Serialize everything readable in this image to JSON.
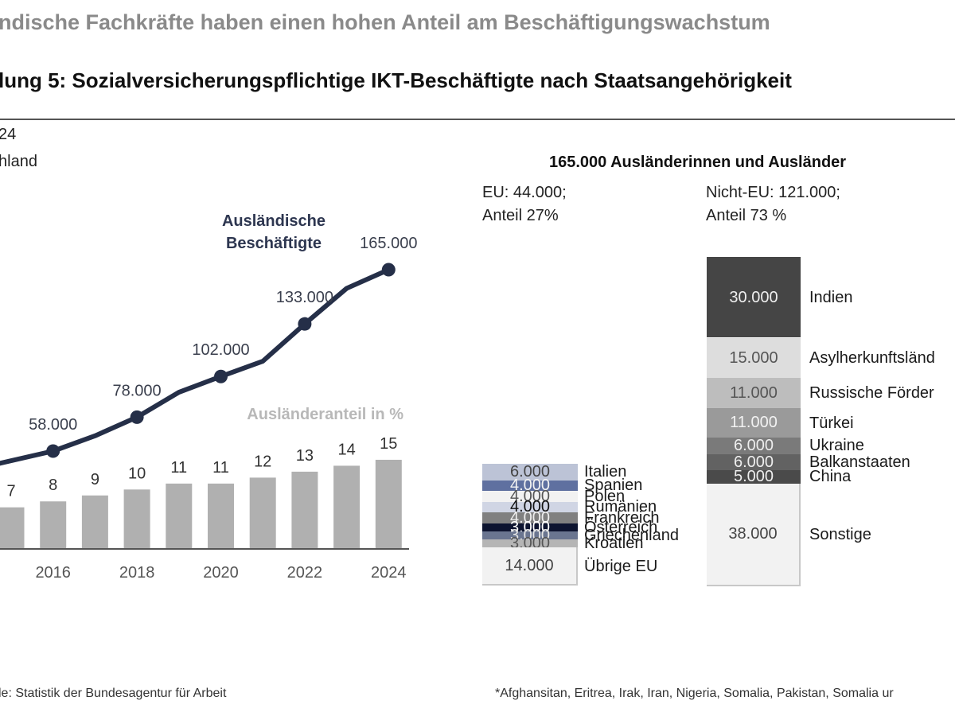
{
  "page": {
    "headline": "ndische Fachkräfte haben einen hohen Anteil am Beschäftigungswachstum",
    "figure_title": "lung 5: Sozialversicherungspflichtige IKT-Beschäftigte nach Staatsangehörigkeit",
    "subtitle_line1": "24",
    "subtitle_line2": "hland",
    "source": "le: Statistik der Bundesagentur für Arbeit",
    "footnote": "*Afghansitan, Eritrea, Irak, Iran, Nigeria, Somalia, Pakistan, Somalia ur"
  },
  "chart_data": [
    {
      "type": "bar+line",
      "title": "",
      "categories": [
        "2015",
        "2016",
        "2017",
        "2018",
        "2019",
        "2020",
        "2021",
        "2022",
        "2023",
        "2024"
      ],
      "x_tick_labels": [
        "2016",
        "2018",
        "2020",
        "2022",
        "2024"
      ],
      "series": [
        {
          "name": "Ausländeranteil in %",
          "type": "bar",
          "color": "#b0b0b0",
          "values": [
            7,
            8,
            9,
            10,
            11,
            11,
            12,
            13,
            14,
            15
          ],
          "labels": [
            "7",
            "8",
            "9",
            "10",
            "11",
            "11",
            "12",
            "13",
            "14",
            "15"
          ]
        },
        {
          "name": "Ausländische Beschäftigte",
          "type": "line",
          "color": "#252f48",
          "values": [
            49500,
            58000,
            67000,
            78000,
            92700,
            102000,
            111000,
            133000,
            154000,
            165000
          ],
          "marked_points": [
            {
              "category": "2016",
              "value": 58000,
              "label": "58.000"
            },
            {
              "category": "2018",
              "value": 78000,
              "label": "78.000"
            },
            {
              "category": "2020",
              "value": 102000,
              "label": "102.000"
            },
            {
              "category": "2022",
              "value": 133000,
              "label": "133.000"
            },
            {
              "category": "2024",
              "value": 165000,
              "label": "165.000"
            }
          ]
        }
      ],
      "series_labels": {
        "line": [
          "Ausländische",
          "Beschäftigte"
        ],
        "bar": "Ausländeranteil in %"
      },
      "grid": false,
      "legend": "inline-annotations"
    },
    {
      "type": "stacked-bar",
      "title": "165.000 Ausländerinnen und Ausländer",
      "groups": [
        {
          "name": "EU",
          "header_line1": "EU: 44.000;",
          "header_line2": "Anteil 27%",
          "total": 44000,
          "share_percent": 27,
          "segments": [
            {
              "name": "Italien",
              "value": 6000,
              "label": "6.000",
              "color": "#bcc3d6",
              "text_color": "#444444"
            },
            {
              "name": "Spanien",
              "value": 4000,
              "label": "4.000",
              "color": "#5f70a0",
              "text_color": "#f2f2f2"
            },
            {
              "name": "Polen",
              "value": 4000,
              "label": "4.000",
              "color": "#f2f2f2",
              "text_color": "#555555"
            },
            {
              "name": "Rumänien",
              "value": 4000,
              "label": "4.000",
              "color": "#d0d5e4",
              "text_color": "#111111"
            },
            {
              "name": "Frankreich",
              "value": 4000,
              "label": "4.000",
              "color": "#808080",
              "text_color": "#eeeeee"
            },
            {
              "name": "Österreich",
              "value": 3000,
              "label": "3.000",
              "color": "#0d1430",
              "text_color": "#ffffff"
            },
            {
              "name": "Griechenland",
              "value": 3000,
              "label": "3.000",
              "color": "#6a7590",
              "text_color": "#e6e6e6"
            },
            {
              "name": "Kroatien",
              "value": 3000,
              "label": "3.000",
              "color": "#b5b5b5",
              "text_color": "#555555"
            },
            {
              "name": "Übrige EU",
              "value": 14000,
              "label": "14.000",
              "color": "#f2f2f2",
              "text_color": "#444444"
            }
          ]
        },
        {
          "name": "Nicht-EU",
          "header_line1": "Nicht-EU: 121.000;",
          "header_line2": "Anteil 73 %",
          "total": 121000,
          "share_percent": 73,
          "segments": [
            {
              "name": "Indien",
              "value": 30000,
              "label": "30.000",
              "color": "#454545",
              "text_color": "#eeeeee"
            },
            {
              "name": "Asylherkunftsländ",
              "value": 15000,
              "label": "15.000",
              "color": "#dddddd",
              "text_color": "#555555"
            },
            {
              "name": "Russische Förder",
              "value": 11000,
              "label": "11.000",
              "color": "#bdbdbd",
              "text_color": "#555555"
            },
            {
              "name": "Türkei",
              "value": 11000,
              "label": "11.000",
              "color": "#9a9a9a",
              "text_color": "#f2f2f2"
            },
            {
              "name": "Ukraine",
              "value": 6000,
              "label": "6.000",
              "color": "#7a7a7a",
              "text_color": "#eeeeee"
            },
            {
              "name": "Balkanstaaten",
              "value": 6000,
              "label": "6.000",
              "color": "#626262",
              "text_color": "#eeeeee"
            },
            {
              "name": "China",
              "value": 5000,
              "label": "5.000",
              "color": "#4a4a4a",
              "text_color": "#eeeeee"
            },
            {
              "name": "Sonstige",
              "value": 38000,
              "label": "38.000",
              "color": "#f2f2f2",
              "text_color": "#444444"
            }
          ]
        }
      ]
    }
  ]
}
